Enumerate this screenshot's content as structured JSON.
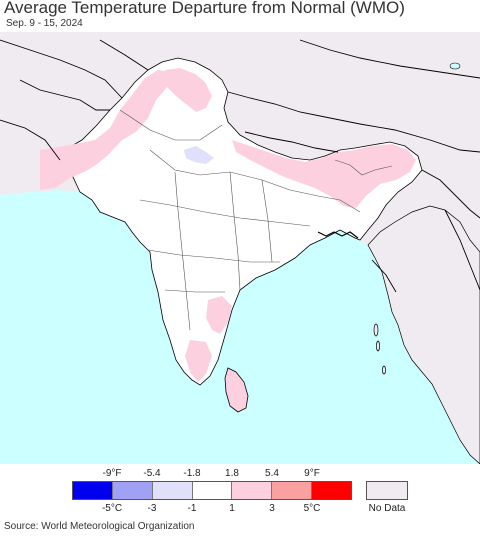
{
  "header": {
    "title": "Average Temperature Departure from Normal (WMO)",
    "subtitle": "Sep. 9 - 15, 2024"
  },
  "legend": {
    "fahrenheit_ticks": [
      "-9°F",
      "-5.4",
      "-1.8",
      "1.8",
      "5.4",
      "9°F"
    ],
    "celsius_ticks": [
      "-5°C",
      "-3",
      "-1",
      "1",
      "3",
      "5°C"
    ],
    "color_bins": [
      "#0000ee",
      "#a0a0f5",
      "#e0e0fa",
      "#ffffff",
      "#fdd0e0",
      "#f9a0a0",
      "#ff0000"
    ],
    "no_data_label": "No Data",
    "no_data_color": "#f0ebf0"
  },
  "map": {
    "ocean_color": "#ccffff",
    "land_color": "#ffffff",
    "outside_color": "#f0ebf0",
    "warm_color": "#fdd0e0",
    "cool_color": "#e0e0fa",
    "border_color": "#000000",
    "state_border_color": "#555555"
  },
  "footer": {
    "source": "Source: World Meteorological Organization"
  }
}
